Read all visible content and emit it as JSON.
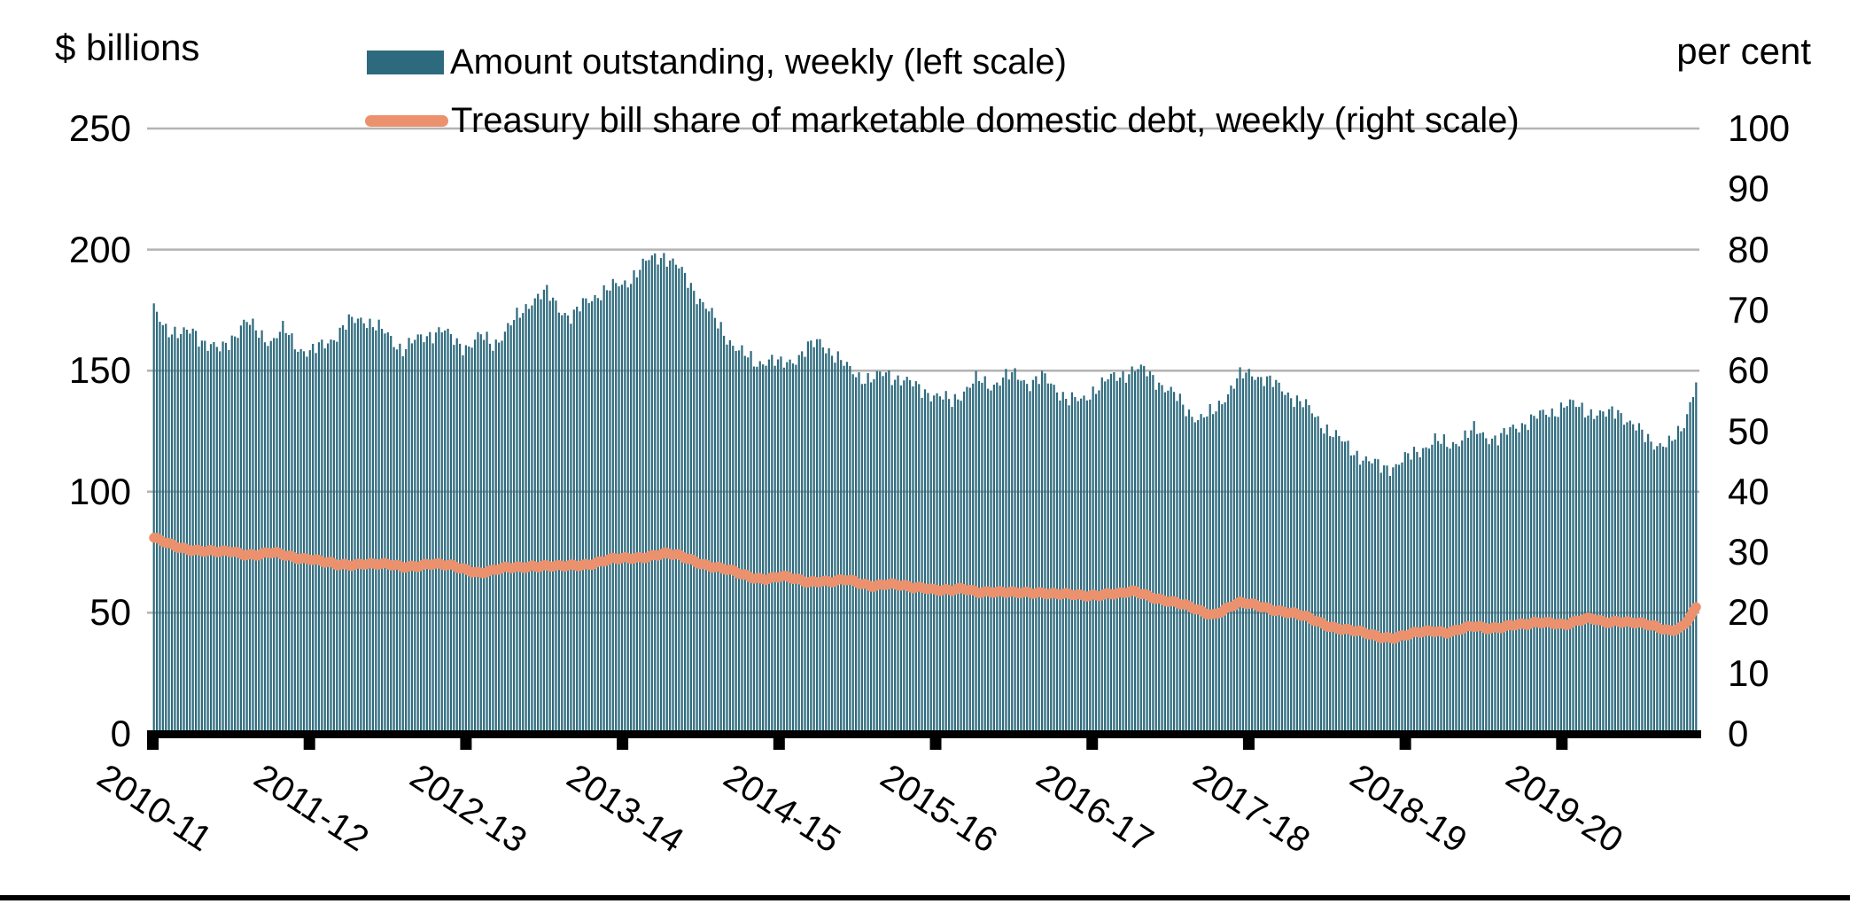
{
  "titles": {
    "left_axis_unit": "$ billions",
    "right_axis_unit": "per cent"
  },
  "legend": [
    {
      "label": "Amount outstanding, weekly (left scale)",
      "swatch": "bar-swatch"
    },
    {
      "label": "Treasury bill share of marketable domestic debt, weekly (right scale)",
      "swatch": "line-swatch"
    }
  ],
  "axes": {
    "left_ticks": [
      "250",
      "200",
      "150",
      "100",
      "50",
      "0"
    ],
    "right_ticks": [
      "100",
      "90",
      "80",
      "70",
      "60",
      "50",
      "40",
      "30",
      "20",
      "10",
      "0"
    ],
    "x_ticks": [
      "2010-11",
      "2011-12",
      "2012-13",
      "2013-14",
      "2014-15",
      "2015-16",
      "2016-17",
      "2017-18",
      "2018-19",
      "2019-20"
    ]
  },
  "colors": {
    "bar": "#2d6a7d",
    "line": "#ec916d",
    "gridline": "#b3b3b3",
    "axis": "#000000",
    "text": "#000000"
  },
  "chart_data": {
    "type": "bar+line combo",
    "title": "",
    "x_unit": "weekly observations, fiscal years (April to March), 2010-11 through 2019-20 (ends early 2020)",
    "categories": [
      "2010-11",
      "2011-12",
      "2012-13",
      "2013-14",
      "2014-15",
      "2015-16",
      "2016-17",
      "2017-18",
      "2018-19",
      "2019-20"
    ],
    "left_ylabel": "$ billions",
    "right_ylabel": "per cent",
    "left_ylim": [
      0,
      250
    ],
    "right_ylim": [
      0,
      100
    ],
    "gridlines_at_left_values": [
      50,
      100,
      150,
      200,
      250
    ],
    "legend_position": "top",
    "resolution_note": "monthly anchor values read from the figure (Apr 2010 to Feb 2020); figure itself plots weekly data",
    "series": [
      {
        "name": "Amount outstanding, weekly (left scale)",
        "type": "bar",
        "axis": "left",
        "unit": "$ billions",
        "monthly_values": [
          175,
          168,
          164,
          167,
          161,
          158,
          164,
          170,
          166,
          162,
          167,
          160,
          157,
          161,
          165,
          170,
          172,
          168,
          164,
          159,
          162,
          165,
          167,
          162,
          160,
          164,
          161,
          167,
          173,
          180,
          182,
          176,
          172,
          178,
          182,
          184,
          186,
          191,
          196,
          198,
          193,
          186,
          178,
          170,
          163,
          157,
          153,
          155,
          152,
          155,
          159,
          162,
          157,
          151,
          148,
          146,
          149,
          147,
          144,
          142,
          139,
          137,
          142,
          146,
          144,
          147,
          148,
          145,
          147,
          143,
          138,
          137,
          143,
          146,
          148,
          151,
          149,
          145,
          140,
          134,
          130,
          132,
          140,
          147,
          149,
          147,
          143,
          140,
          136,
          130,
          125,
          120,
          116,
          112,
          110,
          111,
          114,
          118,
          121,
          119,
          122,
          125,
          123,
          122,
          126,
          129,
          131,
          133,
          136,
          135,
          133,
          131,
          134,
          128,
          123,
          120,
          119,
          127,
          146
        ]
      },
      {
        "name": "Treasury bill share of marketable domestic debt, weekly (right scale)",
        "type": "line",
        "axis": "right",
        "unit": "per cent",
        "monthly_values": [
          32.2,
          31.4,
          30.9,
          30.5,
          30.1,
          29.9,
          30.2,
          29.8,
          29.6,
          29.8,
          29.5,
          29.2,
          29.0,
          28.3,
          27.8,
          28.0,
          28.3,
          28.0,
          27.8,
          27.6,
          27.9,
          28.1,
          27.8,
          27.6,
          27.2,
          26.7,
          26.9,
          27.3,
          27.6,
          27.9,
          27.7,
          27.5,
          27.8,
          28.1,
          28.4,
          28.7,
          28.9,
          29.2,
          29.5,
          29.7,
          29.4,
          28.9,
          28.2,
          27.5,
          26.9,
          26.3,
          25.9,
          25.7,
          25.9,
          25.5,
          25.2,
          25.4,
          25.1,
          25.3,
          24.9,
          24.6,
          24.8,
          24.4,
          24.1,
          24.3,
          23.9,
          23.6,
          23.8,
          23.5,
          23.7,
          23.4,
          23.1,
          23.3,
          23.5,
          23.2,
          22.9,
          22.7,
          23.0,
          23.3,
          23.1,
          23.4,
          22.9,
          22.4,
          21.8,
          21.0,
          20.3,
          19.8,
          20.7,
          21.5,
          21.3,
          21.0,
          20.5,
          19.9,
          19.3,
          18.6,
          17.9,
          17.3,
          16.8,
          16.4,
          16.1,
          16.0,
          16.3,
          16.7,
          17.1,
          16.9,
          17.3,
          17.6,
          17.4,
          17.8,
          18.1,
          17.9,
          18.3,
          18.5,
          18.2,
          18.6,
          18.9,
          18.5,
          18.8,
          18.4,
          18.0,
          17.6,
          17.2,
          17.8,
          20.6
        ]
      }
    ]
  }
}
